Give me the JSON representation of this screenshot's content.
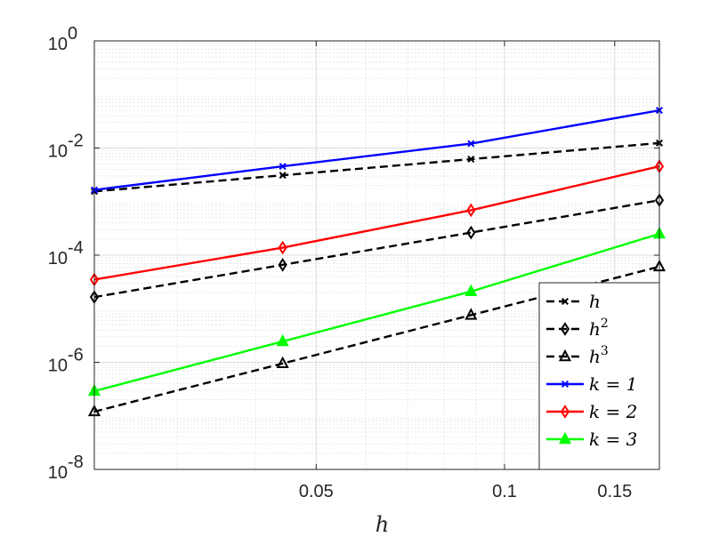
{
  "chart_data": {
    "type": "line",
    "title": "",
    "xlabel": "h",
    "ylabel": "",
    "xscale": "log",
    "yscale": "log",
    "xlim": [
      0.0221,
      0.1768
    ],
    "ylim": [
      1e-08,
      1
    ],
    "grid": true,
    "minor_grid": true,
    "legend_placement": "bottom-right",
    "x": [
      0.0221,
      0.0442,
      0.0884,
      0.1768
    ],
    "xticks": [
      {
        "value": 0.05,
        "label": "0.05"
      },
      {
        "value": 0.1,
        "label": "0.1"
      },
      {
        "value": 0.15,
        "label": "0.15"
      }
    ],
    "yticks": [
      {
        "value": 1e-08,
        "base": "10",
        "exp": "-8"
      },
      {
        "value": 1e-06,
        "base": "10",
        "exp": "-6"
      },
      {
        "value": 0.0001,
        "base": "10",
        "exp": "-4"
      },
      {
        "value": 0.01,
        "base": "10",
        "exp": "-2"
      },
      {
        "value": 1,
        "base": "10",
        "exp": "0"
      }
    ],
    "series": [
      {
        "key": "h",
        "label": "h",
        "sup": "",
        "color": "#000000",
        "dash": true,
        "marker": "x",
        "values": [
          0.00155,
          0.0031,
          0.0062,
          0.0124
        ]
      },
      {
        "key": "h2",
        "label": "h",
        "sup": "2",
        "color": "#000000",
        "dash": true,
        "marker": "diamond",
        "values": [
          1.65e-05,
          6.6e-05,
          0.000264,
          0.00106
        ]
      },
      {
        "key": "h3",
        "label": "h",
        "sup": "3",
        "color": "#000000",
        "dash": true,
        "marker": "triangle",
        "values": [
          1.2e-07,
          9.5e-07,
          7.6e-06,
          6.1e-05
        ]
      },
      {
        "key": "k1",
        "label": "k = 1",
        "sup": "",
        "color": "#0000ff",
        "dash": false,
        "marker": "x",
        "values": [
          0.00165,
          0.00455,
          0.0121,
          0.0505
        ]
      },
      {
        "key": "k2",
        "label": "k = 2",
        "sup": "",
        "color": "#ff0000",
        "dash": false,
        "marker": "diamond",
        "values": [
          3.5e-05,
          0.000138,
          0.00069,
          0.00455
        ]
      },
      {
        "key": "k3",
        "label": "k = 3",
        "sup": "",
        "color": "#00ff00",
        "dash": false,
        "marker": "triangle",
        "values": [
          2.9e-07,
          2.45e-06,
          2.1e-05,
          0.00025
        ]
      }
    ]
  }
}
